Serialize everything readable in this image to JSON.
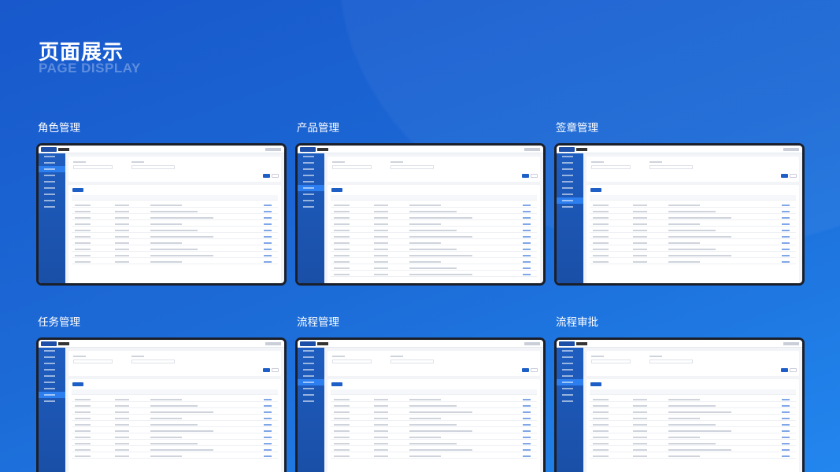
{
  "header": {
    "title": "页面展示",
    "subtitle": "PAGE DISPLAY"
  },
  "sections": [
    {
      "title": "角色管理",
      "rows": 10,
      "active_menu": 2
    },
    {
      "title": "产品管理",
      "rows": 12,
      "active_menu": 5
    },
    {
      "title": "签章管理",
      "rows": 10,
      "active_menu": 7
    },
    {
      "title": "任务管理",
      "rows": 10,
      "active_menu": 7
    },
    {
      "title": "流程管理",
      "rows": 10,
      "active_menu": 5
    },
    {
      "title": "流程审批",
      "rows": 10,
      "active_menu": 5
    }
  ],
  "colors": {
    "accent": "#1d5fc7",
    "sidebar": "#1e5dc0",
    "background": "#1c6ad6"
  }
}
